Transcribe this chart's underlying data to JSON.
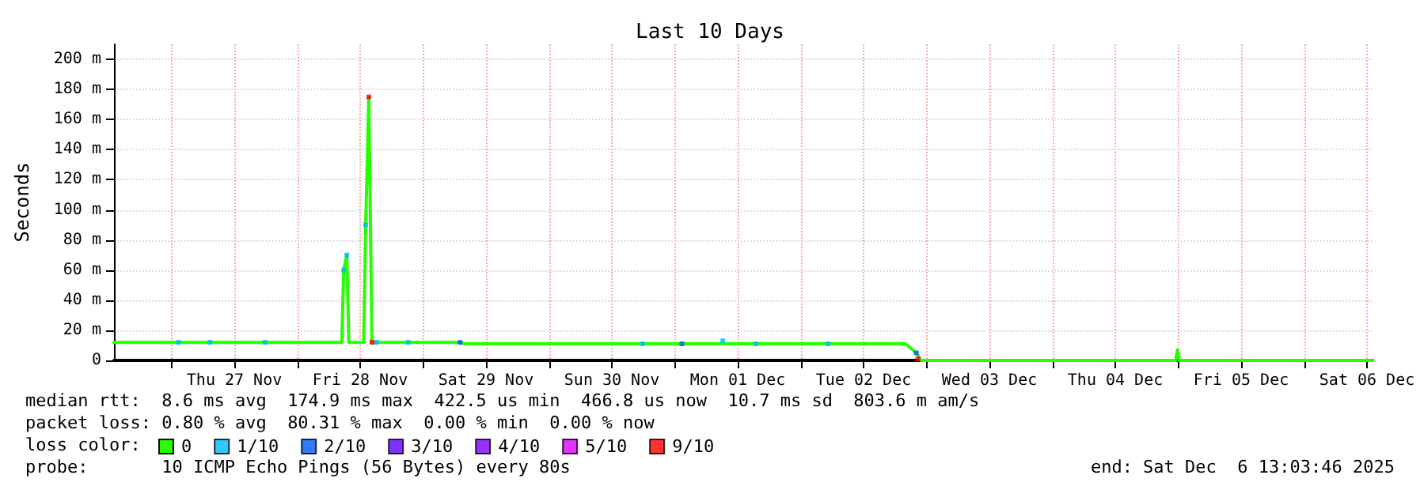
{
  "chart_data": {
    "type": "line",
    "title": "Last 10 Days",
    "ylabel": "Seconds",
    "legend_title": "loss color:",
    "annotations": [
      "median rtt:  8.6 ms avg  174.9 ms max  422.5 us min  466.8 us now  10.7 ms sd  803.6 m am/s",
      "packet loss: 0.80 % avg  80.31 % max  0.00 % min  0.00 % now",
      "probe:       10 ICMP Echo Pings (56 Bytes) every 80s",
      "end: Sat Dec  6 13:03:46 2025"
    ],
    "xlim": [
      "2025-11-26T13:03",
      "2025-12-06T13:03"
    ],
    "xticks": [
      {
        "value": "2025-11-27T00:00",
        "label": null
      },
      {
        "value": "2025-11-27T12:00",
        "label": "Thu 27 Nov"
      },
      {
        "value": "2025-11-28T00:00",
        "label": null
      },
      {
        "value": "2025-11-28T12:00",
        "label": "Fri 28 Nov"
      },
      {
        "value": "2025-11-29T00:00",
        "label": null
      },
      {
        "value": "2025-11-29T12:00",
        "label": "Sat 29 Nov"
      },
      {
        "value": "2025-11-30T00:00",
        "label": null
      },
      {
        "value": "2025-11-30T12:00",
        "label": "Sun 30 Nov"
      },
      {
        "value": "2025-12-01T00:00",
        "label": null
      },
      {
        "value": "2025-12-01T12:00",
        "label": "Mon 01 Dec"
      },
      {
        "value": "2025-12-02T00:00",
        "label": null
      },
      {
        "value": "2025-12-02T12:00",
        "label": "Tue 02 Dec"
      },
      {
        "value": "2025-12-03T00:00",
        "label": null
      },
      {
        "value": "2025-12-03T12:00",
        "label": "Wed 03 Dec"
      },
      {
        "value": "2025-12-04T00:00",
        "label": null
      },
      {
        "value": "2025-12-04T12:00",
        "label": "Thu 04 Dec"
      },
      {
        "value": "2025-12-05T00:00",
        "label": null
      },
      {
        "value": "2025-12-05T12:00",
        "label": "Fri 05 Dec"
      },
      {
        "value": "2025-12-06T00:00",
        "label": null
      },
      {
        "value": "2025-12-06T12:00",
        "label": "Sat 06 Dec"
      }
    ],
    "ylim": [
      0,
      210
    ],
    "yticks": [
      0,
      {
        "value": 20,
        "label": "20 m"
      },
      {
        "value": 40,
        "label": "40 m"
      },
      {
        "value": 60,
        "label": "60 m"
      },
      {
        "value": 80,
        "label": "80 m"
      },
      {
        "value": 100,
        "label": "100 m"
      },
      {
        "value": 120,
        "label": "120 m"
      },
      {
        "value": 140,
        "label": "140 m"
      },
      {
        "value": 160,
        "label": "160 m"
      },
      {
        "value": 180,
        "label": "180 m"
      },
      {
        "value": 200,
        "label": "200 m"
      }
    ],
    "grid": true,
    "legend": "bottom left",
    "line_style": "solid",
    "series": [
      {
        "name": "0",
        "type": "line",
        "color": "#26ff00",
        "x": [
          "2025-11-26T13:03",
          "2025-11-28T08:30",
          "2025-11-28T08:51",
          "2025-11-28T09:27",
          "2025-11-28T09:50",
          "2025-11-28T12:40",
          "2025-11-28T13:03",
          "2025-11-28T13:39",
          "2025-11-28T14:15",
          "2025-11-29T07:03",
          "2025-11-29T08:00",
          "2025-12-02T20:00",
          "2025-12-02T22:03",
          "2025-12-02T23:00",
          "2025-12-04T23:30",
          "2025-12-04T23:51",
          "2025-12-05T00:15",
          "2025-12-06T13:03"
        ],
        "values": [
          12,
          12,
          60,
          70,
          12,
          12,
          90,
          175,
          12,
          12,
          11,
          11,
          5,
          0,
          0,
          7,
          0,
          0
        ]
      },
      {
        "name": "1/10",
        "type": "scatter",
        "marker": "square",
        "color": "#00b8ff",
        "x": [
          "2025-11-27T01:21",
          "2025-11-27T07:21",
          "2025-11-27T17:51",
          "2025-11-28T08:51",
          "2025-11-28T09:27",
          "2025-11-28T13:03",
          "2025-11-28T15:09",
          "2025-11-28T21:09",
          "2025-11-30T17:51",
          "2025-12-01T09:09",
          "2025-12-01T15:27",
          "2025-12-02T05:15"
        ],
        "values": [
          12,
          12,
          12,
          60,
          70,
          90,
          12,
          12,
          11,
          13,
          11,
          11
        ]
      },
      {
        "name": "2/10",
        "type": "scatter",
        "marker": "square",
        "color": "#0059ff",
        "x": [
          "2025-11-29T07:03",
          "2025-12-01T01:21",
          "2025-12-02T22:03"
        ],
        "values": [
          12,
          11,
          5
        ]
      },
      {
        "name": "3/10",
        "type": "scatter",
        "marker": "square",
        "color": "#5e00ff"
      },
      {
        "name": "4/10",
        "type": "scatter",
        "marker": "square",
        "color": "#7e00ff"
      },
      {
        "name": "5/10",
        "type": "scatter",
        "marker": "square",
        "color": "#dd00ff"
      },
      {
        "name": "9/10",
        "type": "scatter",
        "marker": "square",
        "color": "#ff0000",
        "x": [
          "2025-11-28T13:39",
          "2025-11-28T14:15",
          "2025-12-02T22:21"
        ],
        "values": [
          175,
          12,
          1
        ]
      }
    ]
  }
}
